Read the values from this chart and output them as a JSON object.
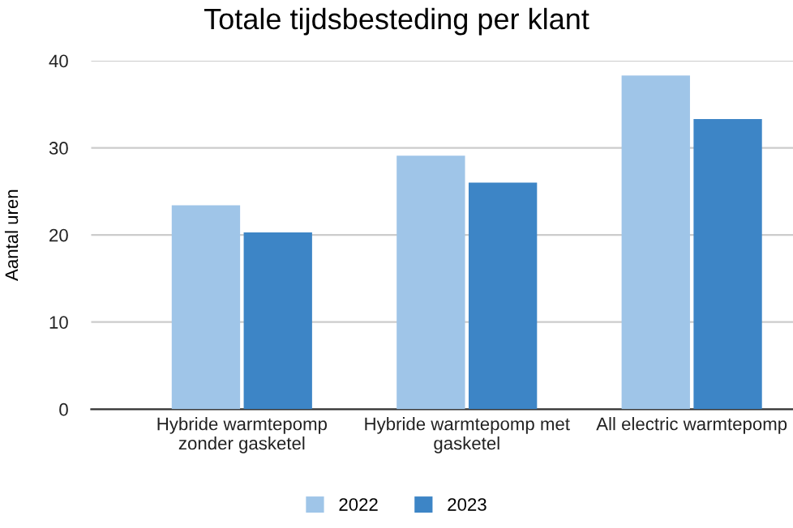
{
  "chart_data": {
    "type": "bar",
    "title": "Totale tijdsbesteding per klant",
    "ylabel": "Aantal uren",
    "categories": [
      "Hybride warmtepomp\nzonder gasketel",
      "Hybride warmtepomp met\ngasketel",
      "All electric warmtepomp"
    ],
    "series": [
      {
        "name": "2022",
        "color": "#9fc5e8",
        "values": [
          23.4,
          29.1,
          38.3
        ]
      },
      {
        "name": "2023",
        "color": "#3d85c6",
        "values": [
          20.3,
          26.0,
          33.3
        ]
      }
    ],
    "ylim": [
      0,
      40
    ],
    "yticks": [
      0,
      10,
      20,
      30,
      40
    ],
    "grid": "y",
    "legend": "bottom"
  }
}
